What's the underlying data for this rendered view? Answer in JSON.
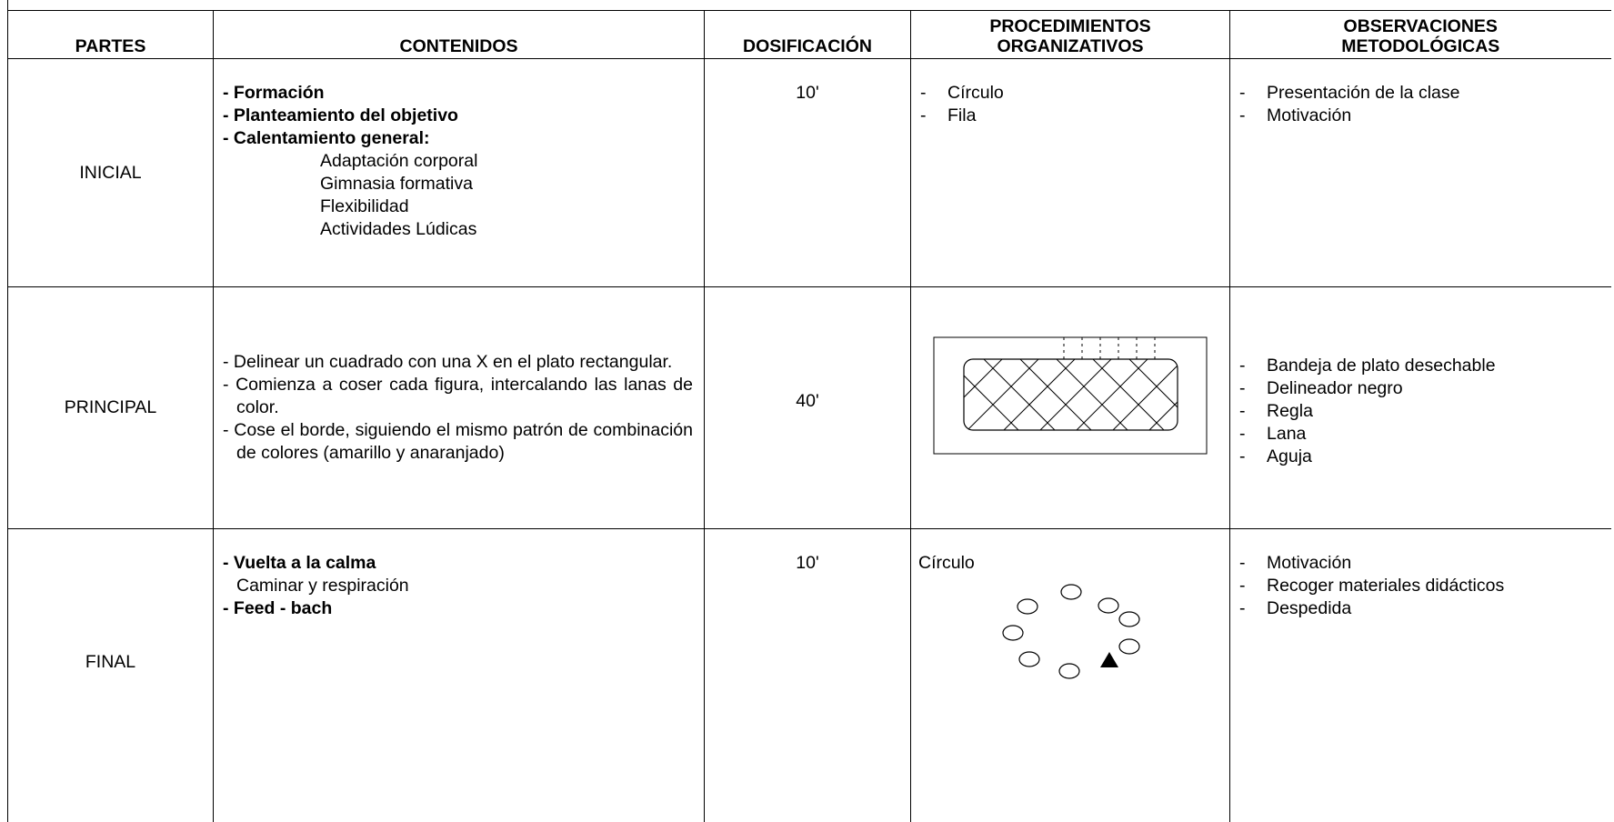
{
  "header": {
    "columns": [
      "PARTES",
      "CONTENIDOS",
      "DOSIFICACIÓN",
      "PROCEDIMIENTOS ORGANIZATIVOS",
      "OBSERVACIONES METODOLÓGICAS"
    ]
  },
  "bullet": "-",
  "rows": [
    {
      "part": "INICIAL",
      "contents": [
        {
          "text": "- Formación",
          "bold": true
        },
        {
          "text": "- Planteamiento del objetivo",
          "bold": true
        },
        {
          "text": "- Calentamiento general:",
          "bold": true
        },
        {
          "text": "Adaptación corporal",
          "indent": true
        },
        {
          "text": "Gimnasia formativa",
          "indent": true
        },
        {
          "text": "Flexibilidad",
          "indent": true
        },
        {
          "text": "Actividades Lúdicas",
          "indent": true
        }
      ],
      "dosage": "10'",
      "procedures": [
        "Círculo",
        "Fila"
      ],
      "observations": [
        "Presentación de la clase",
        "Motivación"
      ]
    },
    {
      "part": "PRINCIPAL",
      "contents": [
        {
          "text": "- Delinear un cuadrado con una X en el plato rectangular.",
          "paragraph": true
        },
        {
          "text": "- Comienza a coser cada figura, intercalando las lanas de color.",
          "paragraph": true
        },
        {
          "text": "- Cose el borde, siguiendo el mismo patrón de combinación de colores (amarillo y anaranjado)",
          "paragraph": true
        }
      ],
      "dosage": "40'",
      "procedures": [],
      "observations": [
        "Bandeja de plato desechable",
        "Delineador negro",
        "Regla",
        "Lana",
        "Aguja"
      ]
    },
    {
      "part": "FINAL",
      "contents": [
        {
          "text": "- Vuelta a la calma",
          "bold": true
        },
        {
          "text": "Caminar y respiración",
          "sub": true
        },
        {
          "text": "- Feed - bach",
          "bold": true
        }
      ],
      "dosage": "10'",
      "procedures_label": "Círculo",
      "observations": [
        "Motivación",
        "Recoger materiales didácticos",
        "Despedida"
      ]
    }
  ]
}
